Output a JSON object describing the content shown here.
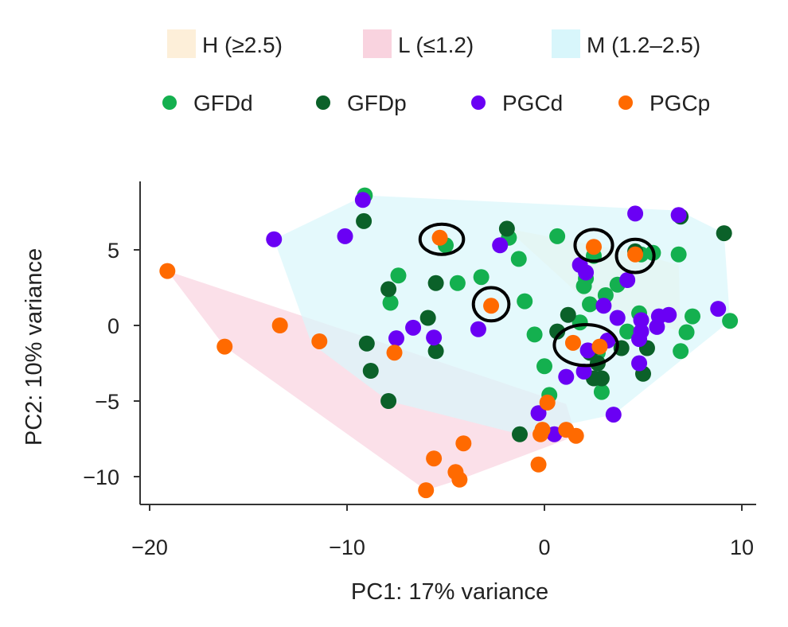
{
  "chart_data": {
    "type": "scatter",
    "title": "",
    "xlabel": "PC1: 17% variance",
    "ylabel": "PC2: 10% variance",
    "xlim": [
      -20.6,
      10.6
    ],
    "ylim": [
      -11.8,
      9.4
    ],
    "xticks": [
      -20,
      -10,
      0,
      10
    ],
    "yticks": [
      -10,
      -5,
      0,
      5
    ],
    "grid": false,
    "legend_placement": "top",
    "regions": [
      {
        "name": "H (≥2.5)",
        "color": "#fdefd9",
        "opacity": 0.75,
        "hull": [
          [
            -1.9,
            6.4
          ],
          [
            4.6,
            4.8
          ],
          [
            6.8,
            4.0
          ],
          [
            6.9,
            -0.4
          ],
          [
            2.3,
            1.4
          ]
        ]
      },
      {
        "name": "L (≤1.2)",
        "color": "#f9d3df",
        "opacity": 0.7,
        "hull": [
          [
            -19.1,
            3.6
          ],
          [
            1.1,
            -5.2
          ],
          [
            1.6,
            -7.3
          ],
          [
            -4.3,
            -10.2
          ],
          [
            -6.0,
            -10.9
          ],
          [
            -16.2,
            -1.4
          ]
        ]
      },
      {
        "name": "M (1.2–2.5)",
        "color": "#d8f6fb",
        "opacity": 0.7,
        "hull": [
          [
            -13.7,
            5.7
          ],
          [
            -9.1,
            8.6
          ],
          [
            6.8,
            7.6
          ],
          [
            9.1,
            6.1
          ],
          [
            9.4,
            0.3
          ],
          [
            3.5,
            -5.9
          ],
          [
            -1.25,
            -7.2
          ],
          [
            -7.9,
            -5.0
          ],
          [
            -11.8,
            -1.2
          ]
        ]
      }
    ],
    "series": [
      {
        "name": "GFDd",
        "color": "#14b04f",
        "points": [
          [
            -9.1,
            8.6
          ],
          [
            -5.0,
            5.3
          ],
          [
            -7.4,
            3.3
          ],
          [
            -7.8,
            1.5
          ],
          [
            -4.4,
            2.8
          ],
          [
            -3.2,
            3.2
          ],
          [
            -1.0,
            1.6
          ],
          [
            -1.8,
            5.8
          ],
          [
            -1.3,
            4.4
          ],
          [
            0.65,
            5.9
          ],
          [
            -0.5,
            -0.6
          ],
          [
            0,
            -2.7
          ],
          [
            0.25,
            -4.6
          ],
          [
            2.1,
            3.1
          ],
          [
            2.5,
            4.6
          ],
          [
            2.0,
            2.6
          ],
          [
            2.3,
            1.4
          ],
          [
            3.1,
            2.0
          ],
          [
            3.7,
            2.7
          ],
          [
            4.9,
            4.7
          ],
          [
            5.5,
            4.8
          ],
          [
            6.8,
            4.7
          ],
          [
            7.5,
            0.6
          ],
          [
            7.2,
            -0.45
          ],
          [
            6.9,
            -1.7
          ],
          [
            9.4,
            0.3
          ],
          [
            4.8,
            0.8
          ],
          [
            4.2,
            -0.4
          ],
          [
            2.9,
            -4.4
          ],
          [
            1.8,
            0.2
          ],
          [
            2.7,
            -1.8
          ]
        ]
      },
      {
        "name": "GFDp",
        "color": "#0b6129",
        "points": [
          [
            -9.15,
            6.9
          ],
          [
            -1.9,
            6.4
          ],
          [
            -7.9,
            2.4
          ],
          [
            -5.5,
            2.8
          ],
          [
            -5.9,
            0.5
          ],
          [
            -9.0,
            -1.2
          ],
          [
            -8.8,
            -3.0
          ],
          [
            -7.9,
            -5.0
          ],
          [
            -5.5,
            -1.7
          ],
          [
            -1.25,
            -7.2
          ],
          [
            1.2,
            0.7
          ],
          [
            0.65,
            -0.4
          ],
          [
            2.3,
            -1.8
          ],
          [
            2.7,
            -2.5
          ],
          [
            2.9,
            -3.5
          ],
          [
            2.5,
            -3.5
          ],
          [
            3.9,
            -1.5
          ],
          [
            5.0,
            -3.2
          ],
          [
            5.2,
            -1.5
          ],
          [
            6.9,
            7.2
          ],
          [
            9.1,
            6.1
          ],
          [
            4.6,
            4.9
          ]
        ]
      },
      {
        "name": "PGCd",
        "color": "#6a00f4",
        "points": [
          [
            -13.7,
            5.7
          ],
          [
            -10.1,
            5.9
          ],
          [
            -9.2,
            8.3
          ],
          [
            -7.5,
            -0.85
          ],
          [
            -6.65,
            -0.15
          ],
          [
            -5.6,
            -0.8
          ],
          [
            -3.35,
            -0.25
          ],
          [
            -2.25,
            5.3
          ],
          [
            1.8,
            4.0
          ],
          [
            2.1,
            3.5
          ],
          [
            4.2,
            3.0
          ],
          [
            3.0,
            1.3
          ],
          [
            3.7,
            0.5
          ],
          [
            4.9,
            0.35
          ],
          [
            5.8,
            0.6
          ],
          [
            6.3,
            0.7
          ],
          [
            5.7,
            -0.1
          ],
          [
            4.8,
            -0.9
          ],
          [
            4.9,
            -0.4
          ],
          [
            2.2,
            -1.65
          ],
          [
            3.2,
            -1.0
          ],
          [
            1.1,
            -3.4
          ],
          [
            2.0,
            -3.05
          ],
          [
            4.8,
            -2.5
          ],
          [
            3.5,
            -5.9
          ],
          [
            -0.3,
            -5.8
          ],
          [
            0.5,
            -7.2
          ],
          [
            4.6,
            7.4
          ],
          [
            6.8,
            7.3
          ],
          [
            8.8,
            1.1
          ]
        ]
      },
      {
        "name": "PGCp",
        "color": "#ff6a00",
        "points": [
          [
            -19.1,
            3.6
          ],
          [
            -16.2,
            -1.4
          ],
          [
            -13.4,
            0
          ],
          [
            -11.4,
            -1.05
          ],
          [
            -7.6,
            -1.8
          ],
          [
            -5.3,
            5.8
          ],
          [
            -2.7,
            1.3
          ],
          [
            2.5,
            5.2
          ],
          [
            4.6,
            4.7
          ],
          [
            1.45,
            -1.15
          ],
          [
            2.8,
            -1.4
          ],
          [
            -5.6,
            -8.8
          ],
          [
            -4.1,
            -7.8
          ],
          [
            -4.5,
            -9.7
          ],
          [
            -4.3,
            -10.2
          ],
          [
            -6.0,
            -10.9
          ],
          [
            -0.3,
            -9.2
          ],
          [
            -0.2,
            -7.2
          ],
          [
            -0.1,
            -6.9
          ],
          [
            1.1,
            -6.9
          ],
          [
            1.6,
            -7.3
          ],
          [
            0.15,
            -5.1
          ]
        ]
      }
    ],
    "annotations": [
      {
        "type": "ellipse",
        "center": [
          -5.2,
          5.7
        ],
        "rx": 1.1,
        "ry": 1.0
      },
      {
        "type": "ellipse",
        "center": [
          -2.7,
          1.4
        ],
        "rx": 0.9,
        "ry": 1.1
      },
      {
        "type": "ellipse",
        "center": [
          2.5,
          5.3
        ],
        "rx": 0.95,
        "ry": 1.05
      },
      {
        "type": "ellipse",
        "center": [
          4.6,
          4.6
        ],
        "rx": 0.95,
        "ry": 1.1
      },
      {
        "type": "ellipse",
        "center": [
          2.1,
          -1.3
        ],
        "rx": 1.6,
        "ry": 1.35
      }
    ]
  }
}
